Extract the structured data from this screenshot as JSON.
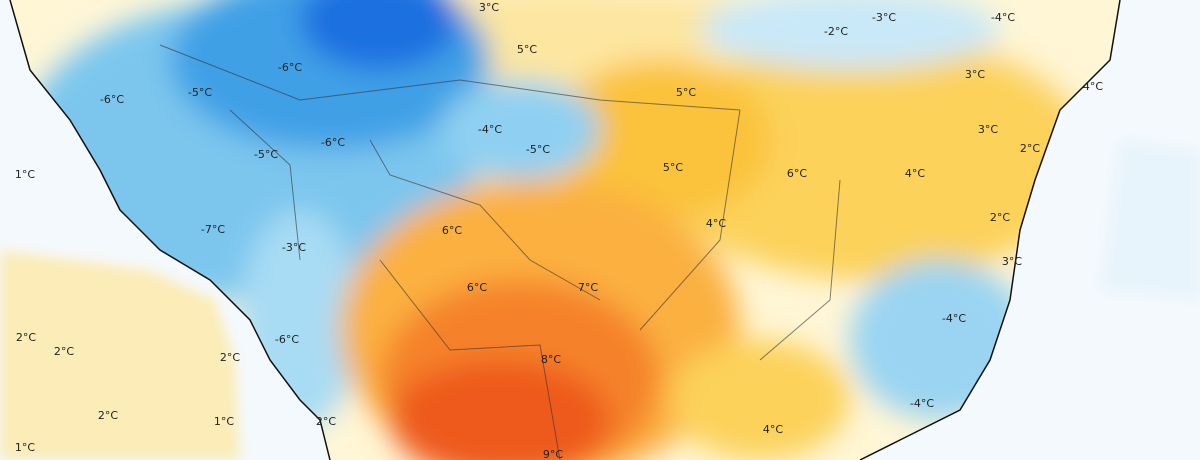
{
  "map": {
    "labels": [
      "3°C",
      "5°C",
      "-3°C",
      "-4°C",
      "-2°C",
      "-6°C",
      "-6°C",
      "-5°C",
      "5°C",
      "3°C",
      "4°C",
      "-4°C",
      "-6°C",
      "3°C",
      "2°C",
      "-5°C",
      "-5°C",
      "5°C",
      "6°C",
      "4°C",
      "1°C",
      "2°C",
      "6°C",
      "4°C",
      "-7°C",
      "-3°C",
      "3°C",
      "6°C",
      "7°C",
      "-4°C",
      "2°C",
      "2°C",
      "-6°C",
      "2°C",
      "8°C",
      "2°C",
      "1°C",
      "-4°C",
      "2°C",
      "4°C",
      "9°C",
      "1°C"
    ]
  }
}
